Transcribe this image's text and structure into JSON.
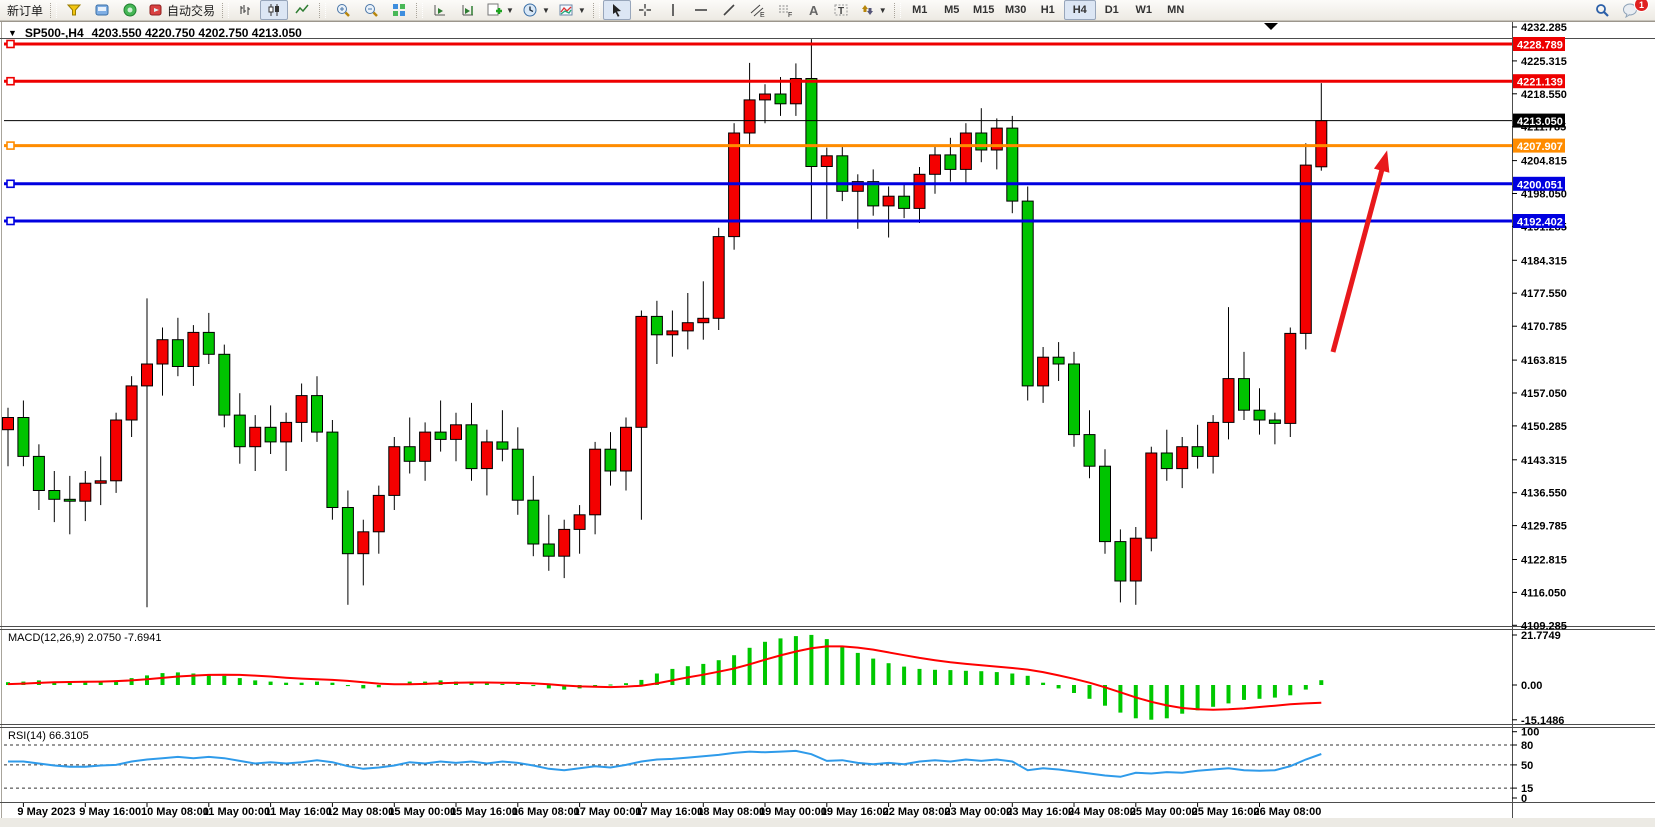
{
  "toolbar": {
    "new_order_label": "新订单",
    "auto_trading_label": "自动交易",
    "timeframes": [
      "M1",
      "M5",
      "M15",
      "M30",
      "H1",
      "H4",
      "D1",
      "W1",
      "MN"
    ],
    "active_timeframe": "H4",
    "notification_badge": "1",
    "icons": [
      "new-order",
      "market-watch",
      "navigator",
      "auto-trading",
      "bar-chart",
      "candlestick-chart",
      "line-chart",
      "zoom-in",
      "zoom-out",
      "tile-windows",
      "auto-scroll",
      "chart-shift",
      "new-chart",
      "periods",
      "indicator-template",
      "cursor",
      "crosshair",
      "vertical-line",
      "horizontal-line",
      "trendline",
      "equidistant-channel",
      "fibonacci",
      "text",
      "text-label",
      "arrows",
      "search",
      "notifications"
    ]
  },
  "chart": {
    "symbol_period": "SP500-,H4",
    "ohlc_display": "4203.550 4220.750 4202.750 4213.050"
  },
  "chart_data": {
    "type": "candlestick",
    "symbol": "SP500-",
    "timeframe": "H4",
    "current_bar": {
      "open": 4203.55,
      "high": 4220.75,
      "low": 4202.75,
      "close": 4213.05
    },
    "colors": {
      "bull": "#F40000",
      "bear": "#00C400",
      "wick": "#000000",
      "macd_histogram": "#00C800",
      "macd_signal": "#FF0000",
      "rsi_line": "#2F9BEA",
      "hline_red": "#EE0000",
      "hline_orange": "#FF8C00",
      "hline_blue": "#0000E0",
      "price_marker_bg": "#000000"
    },
    "y_axis_ticks": [
      "4232.285",
      "4225.315",
      "4218.550",
      "4211.785",
      "4204.815",
      "4198.050",
      "4191.285",
      "4184.315",
      "4177.550",
      "4170.785",
      "4163.815",
      "4157.050",
      "4150.285",
      "4143.315",
      "4136.550",
      "4129.785",
      "4122.815",
      "4116.050",
      "4109.285"
    ],
    "hlines": [
      {
        "price": 4228.789,
        "label": "4228.789",
        "color": "#EE0000",
        "width": 3
      },
      {
        "price": 4221.139,
        "label": "4221.139",
        "color": "#EE0000",
        "width": 3
      },
      {
        "price": 4207.907,
        "label": "4207.907",
        "color": "#FF8C00",
        "width": 3
      },
      {
        "price": 4200.051,
        "label": "4200.051",
        "color": "#0000E0",
        "width": 3
      },
      {
        "price": 4192.402,
        "label": "4192.402",
        "color": "#0000E0",
        "width": 3
      }
    ],
    "price_line": {
      "price": 4213.05,
      "label": "4213.050",
      "color": "#000000"
    },
    "x_labels": [
      "9 May 2023",
      "9 May 16:00",
      "10 May 08:00",
      "11 May 00:00",
      "11 May 16:00",
      "12 May 08:00",
      "15 May 00:00",
      "15 May 16:00",
      "16 May 08:00",
      "17 May 00:00",
      "17 May 16:00",
      "18 May 08:00",
      "19 May 00:00",
      "19 May 16:00",
      "22 May 08:00",
      "23 May 00:00",
      "23 May 16:00",
      "24 May 08:00",
      "25 May 00:00",
      "25 May 16:00",
      "26 May 08:00"
    ],
    "x_label_every": 4,
    "candles": [
      [
        4149.5,
        4154,
        4142,
        4152
      ],
      [
        4152,
        4155.5,
        4142,
        4144
      ],
      [
        4144,
        4146.5,
        4133,
        4137
      ],
      [
        4137,
        4141,
        4130.5,
        4135.2
      ],
      [
        4135.2,
        4140,
        4128,
        4134.8
      ],
      [
        4134.8,
        4141,
        4130.7,
        4138.5
      ],
      [
        4138.5,
        4144,
        4134,
        4139
      ],
      [
        4139,
        4153,
        4136.5,
        4151.5
      ],
      [
        4151.5,
        4160.5,
        4148,
        4158.5
      ],
      [
        4158.5,
        4176.5,
        4113,
        4163
      ],
      [
        4163,
        4170.5,
        4156.5,
        4168
      ],
      [
        4168,
        4172.5,
        4160.5,
        4162.5
      ],
      [
        4162.5,
        4171,
        4158.5,
        4169.5
      ],
      [
        4169.5,
        4173.5,
        4163,
        4165
      ],
      [
        4165,
        4167,
        4150,
        4152.5
      ],
      [
        4152.5,
        4157,
        4142.5,
        4146
      ],
      [
        4146,
        4152.5,
        4141,
        4150
      ],
      [
        4150,
        4154.5,
        4144.5,
        4147
      ],
      [
        4147,
        4153,
        4141,
        4151
      ],
      [
        4151,
        4159,
        4147,
        4156.5
      ],
      [
        4156.5,
        4160.5,
        4147,
        4149
      ],
      [
        4149,
        4151.5,
        4131,
        4133.5
      ],
      [
        4133.5,
        4137,
        4113.5,
        4124
      ],
      [
        4124,
        4131,
        4117.5,
        4128.5
      ],
      [
        4128.5,
        4138,
        4124,
        4136
      ],
      [
        4136,
        4148,
        4133,
        4146
      ],
      [
        4146,
        4152,
        4140.5,
        4143
      ],
      [
        4143,
        4151,
        4139,
        4149
      ],
      [
        4149,
        4155.5,
        4145,
        4147.5
      ],
      [
        4147.5,
        4153,
        4143,
        4150.5
      ],
      [
        4150.5,
        4155,
        4139,
        4141.5
      ],
      [
        4141.5,
        4149.5,
        4136,
        4147
      ],
      [
        4147,
        4153.5,
        4143,
        4145.5
      ],
      [
        4145.5,
        4150,
        4132,
        4135
      ],
      [
        4135,
        4140,
        4123.5,
        4126
      ],
      [
        4126,
        4132,
        4120.5,
        4123.5
      ],
      [
        4123.5,
        4131,
        4119,
        4129
      ],
      [
        4129,
        4134,
        4124,
        4132
      ],
      [
        4132,
        4147,
        4128,
        4145.5
      ],
      [
        4145.5,
        4149,
        4138,
        4141
      ],
      [
        4141,
        4152,
        4137,
        4150
      ],
      [
        4150,
        4174,
        4131,
        4172.8
      ],
      [
        4172.8,
        4176,
        4163,
        4169
      ],
      [
        4169,
        4174,
        4164.5,
        4169.8
      ],
      [
        4169.8,
        4177.6,
        4166,
        4171.5
      ],
      [
        4171.5,
        4180,
        4168,
        4172.4
      ],
      [
        4172.4,
        4191,
        4170,
        4189.2
      ],
      [
        4189.2,
        4212.5,
        4186.5,
        4210.5
      ],
      [
        4210.5,
        4224.9,
        4208,
        4217.3
      ],
      [
        4217.3,
        4220.5,
        4212.5,
        4218.5
      ],
      [
        4218.5,
        4222,
        4214,
        4216.5
      ],
      [
        4216.5,
        4224.8,
        4214,
        4221.7
      ],
      [
        4221.7,
        4229.8,
        4192.6,
        4203.6
      ],
      [
        4203.6,
        4207.5,
        4192.8,
        4205.8
      ],
      [
        4205.8,
        4208,
        4196.5,
        4198.5
      ],
      [
        4198.5,
        4202,
        4190.8,
        4200.5
      ],
      [
        4200.5,
        4203,
        4193.5,
        4195.5
      ],
      [
        4195.5,
        4199.5,
        4189,
        4197.5
      ],
      [
        4197.5,
        4200,
        4193,
        4195
      ],
      [
        4195,
        4203.5,
        4192,
        4202
      ],
      [
        4202,
        4208,
        4198,
        4206
      ],
      [
        4206,
        4209.5,
        4200.5,
        4203
      ],
      [
        4203,
        4212.5,
        4200,
        4210.5
      ],
      [
        4210.5,
        4215.6,
        4204.5,
        4207
      ],
      [
        4207,
        4213.5,
        4203,
        4211.5
      ],
      [
        4211.5,
        4214,
        4194,
        4196.5
      ],
      [
        4196.5,
        4199.5,
        4155.5,
        4158.5
      ],
      [
        4158.5,
        4166.5,
        4155,
        4164.4
      ],
      [
        4164.4,
        4167.5,
        4159.5,
        4163
      ],
      [
        4163,
        4165.5,
        4146,
        4148.5
      ],
      [
        4148.5,
        4153.5,
        4139.5,
        4142
      ],
      [
        4142,
        4145.5,
        4124,
        4126.5
      ],
      [
        4126.5,
        4129,
        4114,
        4118.4
      ],
      [
        4118.4,
        4129.5,
        4113.5,
        4127.2
      ],
      [
        4127.2,
        4146,
        4124.5,
        4144.7
      ],
      [
        4144.7,
        4149.5,
        4139,
        4141.5
      ],
      [
        4141.5,
        4148,
        4137.5,
        4146
      ],
      [
        4146,
        4150.5,
        4141.5,
        4144
      ],
      [
        4144,
        4152.5,
        4140.5,
        4151
      ],
      [
        4151,
        4174.7,
        4147.5,
        4160
      ],
      [
        4160,
        4165.5,
        4151.5,
        4153.5
      ],
      [
        4153.5,
        4158,
        4148.5,
        4151.5
      ],
      [
        4151.5,
        4153,
        4146.5,
        4150.8
      ],
      [
        4150.8,
        4170.5,
        4148,
        4169.3
      ],
      [
        4169.3,
        4208.4,
        4166,
        4203.9
      ],
      [
        4203.55,
        4220.75,
        4202.75,
        4213.05
      ]
    ],
    "macd": {
      "label": "MACD(12,26,9)",
      "values_display": "2.0750 -7.6941",
      "macd_value": 2.075,
      "signal_value": -7.6941,
      "axis_labels": [
        "21.7749",
        "0.00",
        "-15.1486"
      ],
      "axis_values": [
        21.7749,
        0,
        -15.1486
      ],
      "histogram": [
        1.2,
        1.5,
        2.0,
        1.5,
        1.0,
        1.2,
        1.5,
        2.0,
        3.0,
        4.2,
        5.2,
        5.5,
        5.0,
        4.6,
        4.0,
        3.0,
        2.0,
        1.5,
        1.0,
        1.0,
        1.5,
        1.0,
        -0.5,
        -1.5,
        -1.0,
        0.5,
        1.5,
        1.5,
        2.0,
        1.5,
        1.5,
        1.0,
        0.5,
        0.5,
        -0.5,
        -1.5,
        -2.0,
        -1.5,
        -0.8,
        0.2,
        0.8,
        2.2,
        5.0,
        7.0,
        8.2,
        9.2,
        10.8,
        13.0,
        16.2,
        18.8,
        20.3,
        21.3,
        21.8,
        20.0,
        17.0,
        14.0,
        11.5,
        9.5,
        8.0,
        7.0,
        6.6,
        6.5,
        6.2,
        6.0,
        5.6,
        5.0,
        4.0,
        1.0,
        -1.5,
        -3.5,
        -6.0,
        -9.0,
        -12.0,
        -14.5,
        -15.1,
        -14.5,
        -12.5,
        -11.0,
        -9.5,
        -8.0,
        -6.5,
        -6.0,
        -5.5,
        -4.5,
        -2.0,
        2.1
      ],
      "signal": [
        0.4,
        0.6,
        0.9,
        1.2,
        1.3,
        1.4,
        1.5,
        1.7,
        2.0,
        2.5,
        3.1,
        3.7,
        4.1,
        4.4,
        4.5,
        4.4,
        4.1,
        3.7,
        3.2,
        2.8,
        2.5,
        2.2,
        1.8,
        1.2,
        0.6,
        0.3,
        0.3,
        0.5,
        0.8,
        1.0,
        1.1,
        1.1,
        1.0,
        0.9,
        0.7,
        0.3,
        -0.2,
        -0.6,
        -0.8,
        -0.9,
        -0.7,
        -0.3,
        0.7,
        2.0,
        3.3,
        4.5,
        5.8,
        7.2,
        9.0,
        11.0,
        12.9,
        14.6,
        16.0,
        16.8,
        16.8,
        16.3,
        15.4,
        14.2,
        13.0,
        11.8,
        10.8,
        9.9,
        9.2,
        8.6,
        8.0,
        7.4,
        6.7,
        5.6,
        4.2,
        2.7,
        1.0,
        -1.0,
        -3.2,
        -5.4,
        -7.3,
        -8.9,
        -10.0,
        -10.6,
        -10.8,
        -10.6,
        -10.2,
        -9.6,
        -9.0,
        -8.4,
        -8.0,
        -7.69
      ]
    },
    "rsi": {
      "label": "RSI(14)",
      "value_display": "66.3105",
      "value": 66.3105,
      "levels": [
        80,
        50,
        15
      ],
      "axis_labels": [
        "100",
        "80",
        "50",
        "15",
        "0"
      ],
      "axis_values": [
        100,
        80,
        50,
        15,
        0
      ],
      "series": [
        55,
        55,
        52,
        49,
        47,
        47,
        49,
        50,
        55,
        58,
        60,
        62,
        60,
        62,
        60,
        56,
        52,
        54,
        52,
        54,
        57,
        54,
        48,
        44,
        46,
        49,
        54,
        52,
        55,
        53,
        55,
        52,
        55,
        53,
        49,
        44,
        42,
        45,
        48,
        46,
        50,
        55,
        58,
        59,
        61,
        63,
        65,
        68,
        70,
        69,
        70,
        71,
        66,
        56,
        57,
        53,
        51,
        53,
        51,
        55,
        57,
        55,
        58,
        56,
        58,
        55,
        42,
        45,
        43,
        40,
        37,
        34,
        32,
        38,
        37,
        39,
        38,
        41,
        43,
        45,
        42,
        41,
        42,
        48,
        58,
        66.31
      ]
    },
    "annotations": [
      {
        "type": "arrow",
        "from": [
          1333,
          352
        ],
        "to": [
          1384,
          162
        ],
        "color": "#E8191C",
        "width": 5
      }
    ]
  }
}
